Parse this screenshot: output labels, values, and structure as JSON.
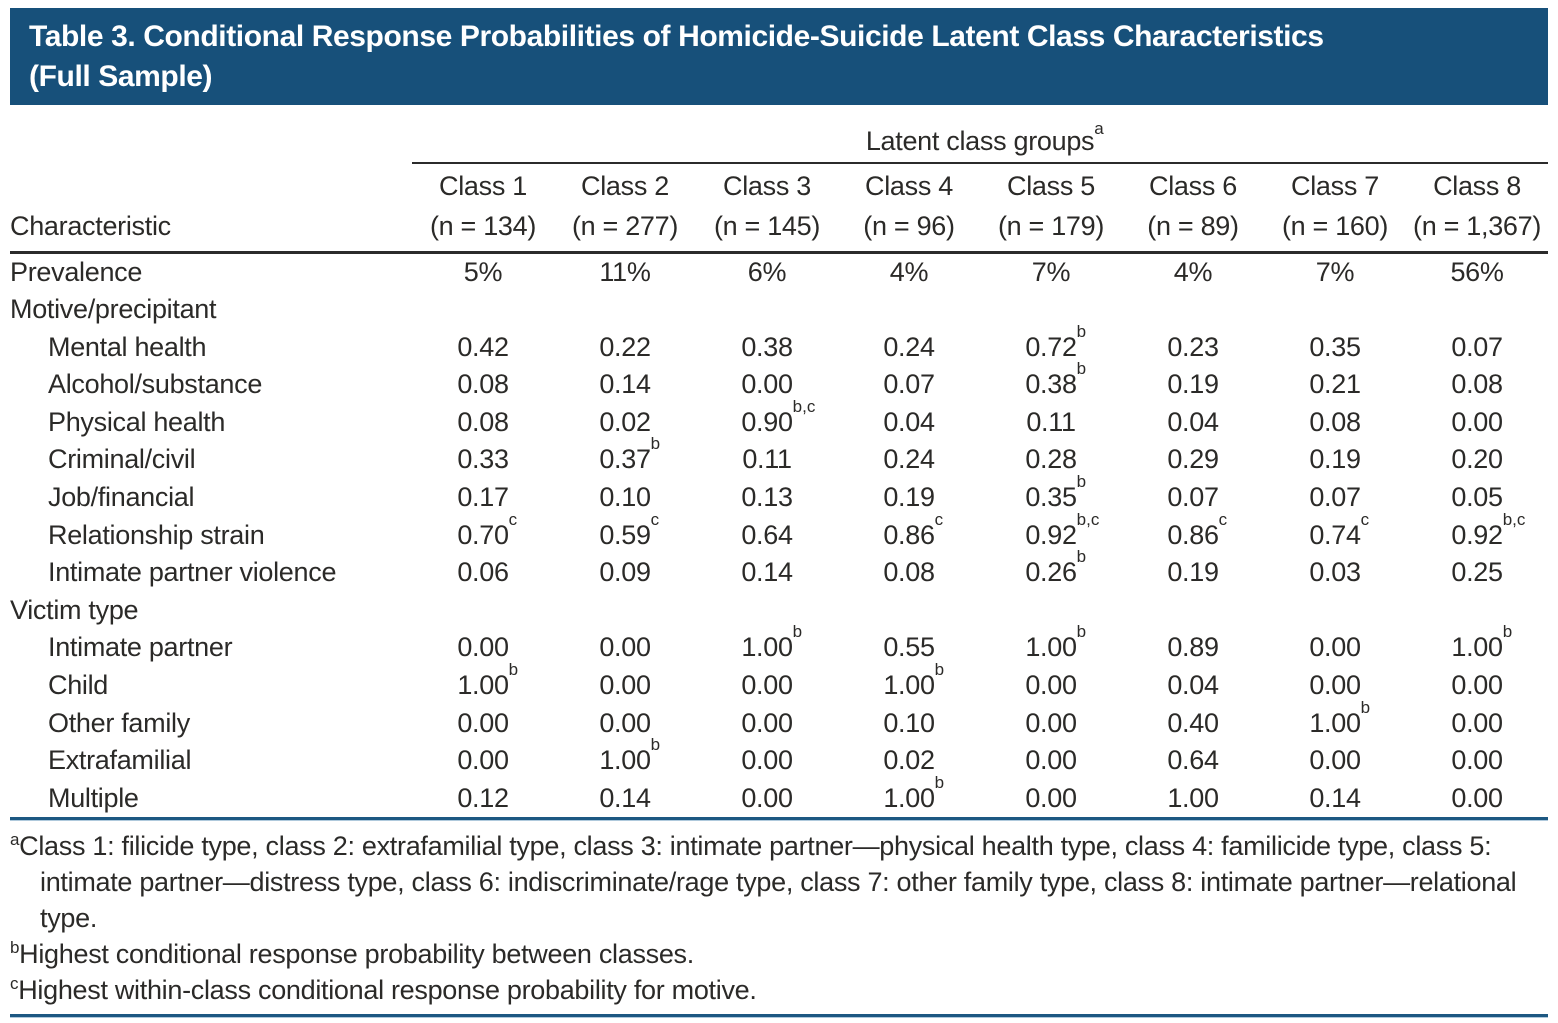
{
  "page": {
    "title_line1": "Table 3. Conditional Response Probabilities of Homicide-Suicide Latent Class Characteristics",
    "title_line2": "(Full Sample)"
  },
  "colors": {
    "header_bg": "#17507A",
    "rule_blue": "#1D5882",
    "rule_blue_light": "#AFC9DC",
    "text": "#2B2A28"
  },
  "table": {
    "group_header": "Latent class groups^a",
    "row_header_label": "Characteristic",
    "columns": [
      {
        "label": "Class 1",
        "n": "(n = 134)"
      },
      {
        "label": "Class 2",
        "n": "(n = 277)"
      },
      {
        "label": "Class 3",
        "n": "(n = 145)"
      },
      {
        "label": "Class 4",
        "n": "(n = 96)"
      },
      {
        "label": "Class 5",
        "n": "(n = 179)"
      },
      {
        "label": "Class 6",
        "n": "(n = 89)"
      },
      {
        "label": "Class 7",
        "n": "(n = 160)"
      },
      {
        "label": "Class 8",
        "n": "(n = 1,367)"
      }
    ],
    "rows": [
      {
        "label": "Prevalence",
        "indent": false,
        "values": [
          "5%",
          "11%",
          "6%",
          "4%",
          "7%",
          "4%",
          "7%",
          "56%"
        ]
      },
      {
        "label": "Motive/precipitant",
        "indent": false,
        "section": true,
        "values": []
      },
      {
        "label": "Mental health",
        "indent": true,
        "values": [
          "0.42",
          "0.22",
          "0.38",
          "0.24",
          "0.72^b",
          "0.23",
          "0.35",
          "0.07"
        ]
      },
      {
        "label": "Alcohol/substance",
        "indent": true,
        "values": [
          "0.08",
          "0.14",
          "0.00",
          "0.07",
          "0.38^b",
          "0.19",
          "0.21",
          "0.08"
        ]
      },
      {
        "label": "Physical health",
        "indent": true,
        "values": [
          "0.08",
          "0.02",
          "0.90^b,c",
          "0.04",
          "0.11",
          "0.04",
          "0.08",
          "0.00"
        ]
      },
      {
        "label": "Criminal/civil",
        "indent": true,
        "values": [
          "0.33",
          "0.37^b",
          "0.11",
          "0.24",
          "0.28",
          "0.29",
          "0.19",
          "0.20"
        ]
      },
      {
        "label": "Job/financial",
        "indent": true,
        "values": [
          "0.17",
          "0.10",
          "0.13",
          "0.19",
          "0.35^b",
          "0.07",
          "0.07",
          "0.05"
        ]
      },
      {
        "label": "Relationship strain",
        "indent": true,
        "values": [
          "0.70^c",
          "0.59^c",
          "0.64",
          "0.86^c",
          "0.92^b,c",
          "0.86^c",
          "0.74^c",
          "0.92^b,c"
        ]
      },
      {
        "label": "Intimate partner violence",
        "indent": true,
        "values": [
          "0.06",
          "0.09",
          "0.14",
          "0.08",
          "0.26^b",
          "0.19",
          "0.03",
          "0.25"
        ]
      },
      {
        "label": "Victim type",
        "indent": false,
        "section": true,
        "values": []
      },
      {
        "label": "Intimate partner",
        "indent": true,
        "values": [
          "0.00",
          "0.00",
          "1.00^b",
          "0.55",
          "1.00^b",
          "0.89",
          "0.00",
          "1.00^b"
        ]
      },
      {
        "label": "Child",
        "indent": true,
        "values": [
          "1.00^b",
          "0.00",
          "0.00",
          "1.00^b",
          "0.00",
          "0.04",
          "0.00",
          "0.00"
        ]
      },
      {
        "label": "Other family",
        "indent": true,
        "values": [
          "0.00",
          "0.00",
          "0.00",
          "0.10",
          "0.00",
          "0.40",
          "1.00^b",
          "0.00"
        ]
      },
      {
        "label": "Extrafamilial",
        "indent": true,
        "values": [
          "0.00",
          "1.00^b",
          "0.00",
          "0.02",
          "0.00",
          "0.64",
          "0.00",
          "0.00"
        ]
      },
      {
        "label": "Multiple",
        "indent": true,
        "values": [
          "0.12",
          "0.14",
          "0.00",
          "1.00^b",
          "0.00",
          "1.00",
          "0.14",
          "0.00"
        ]
      }
    ]
  },
  "footnotes": [
    {
      "marker": "a",
      "text": "Class 1: filicide type, class 2: extrafamilial type, class 3: intimate partner—physical health type, class 4: familicide type, class 5: intimate partner—distress type, class 6: indiscriminate/rage type, class 7: other family type, class 8: intimate partner—relational type."
    },
    {
      "marker": "b",
      "text": "Highest conditional response probability between classes."
    },
    {
      "marker": "c",
      "text": "Highest within-class conditional response probability for motive."
    }
  ]
}
